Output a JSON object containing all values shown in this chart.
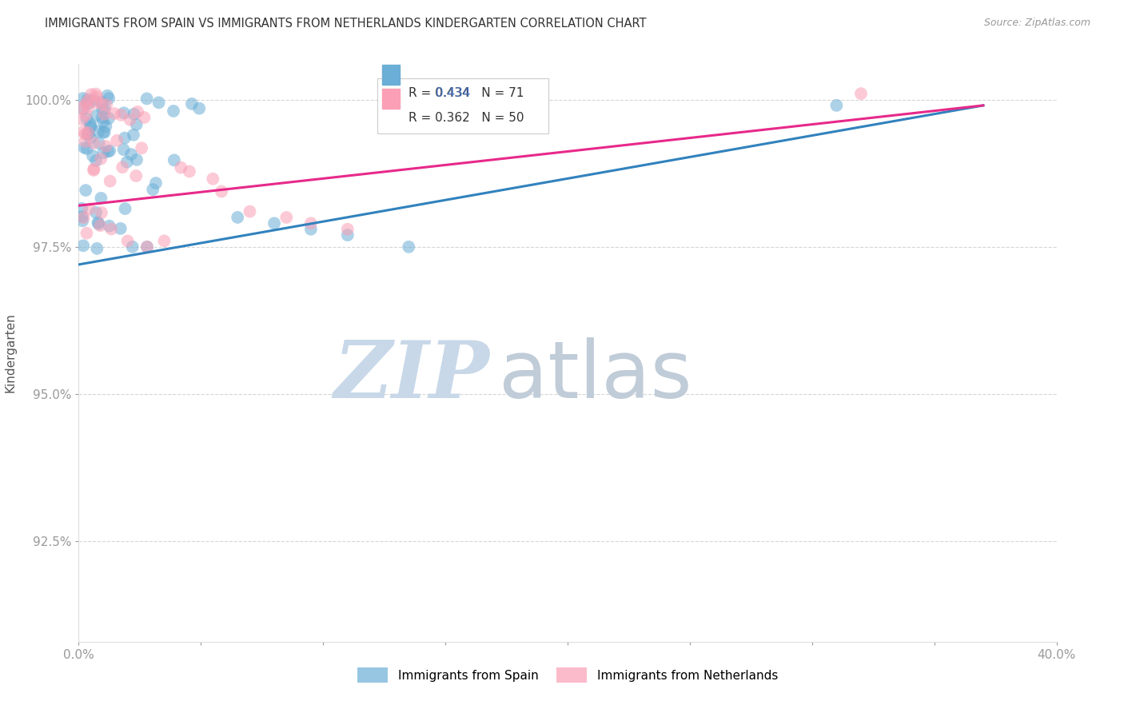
{
  "title": "IMMIGRANTS FROM SPAIN VS IMMIGRANTS FROM NETHERLANDS KINDERGARTEN CORRELATION CHART",
  "source": "Source: ZipAtlas.com",
  "ylabel": "Kindergarten",
  "ytick_labels": [
    "100.0%",
    "97.5%",
    "95.0%",
    "92.5%"
  ],
  "ytick_values": [
    1.0,
    0.975,
    0.95,
    0.925
  ],
  "xlim": [
    0.0,
    0.4
  ],
  "ylim": [
    0.908,
    1.006
  ],
  "legend_spain": "Immigrants from Spain",
  "legend_netherlands": "Immigrants from Netherlands",
  "R_spain": 0.434,
  "N_spain": 71,
  "R_netherlands": 0.362,
  "N_netherlands": 50,
  "spain_color": "#6baed6",
  "netherlands_color": "#fa9fb5",
  "trend_spain_color": "#3182bd",
  "trend_netherlands_color": "#e7298a",
  "background_color": "#ffffff",
  "grid_color": "#cccccc",
  "watermark_zip": "ZIP",
  "watermark_atlas": "atlas",
  "watermark_color_zip": "#c8d8e8",
  "watermark_color_atlas": "#c0ccd8"
}
